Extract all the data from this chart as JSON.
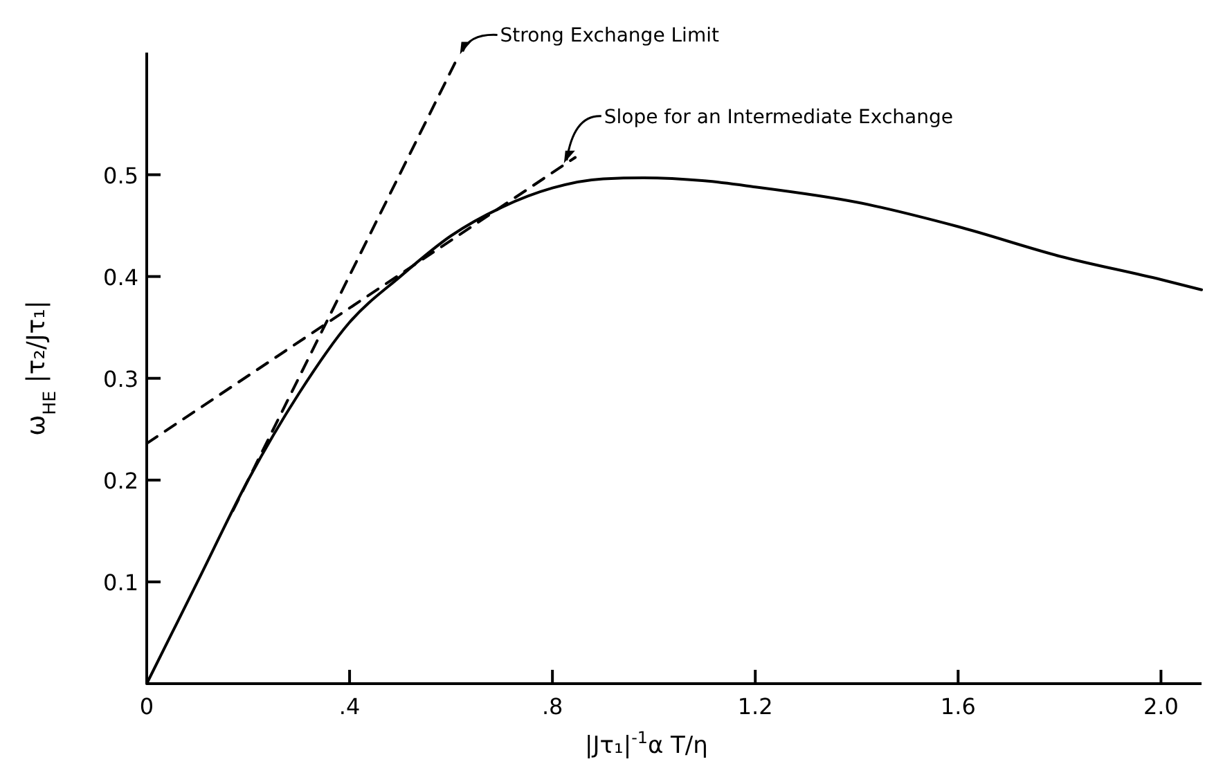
{
  "chart_data": {
    "type": "line",
    "xlabel": "|Jτ₁|$^{-1}$α  T/η",
    "ylabel": "ω$_{HE}$ |τ₂/Jτ₁|",
    "xlim": [
      0,
      2.08
    ],
    "ylim": [
      0,
      0.62
    ],
    "xticks": [
      0,
      {
        "value": 0.4,
        "label": ".4"
      },
      {
        "value": 0.8,
        "label": ".8"
      },
      1.2,
      1.6,
      {
        "value": 2,
        "label": "2.0"
      }
    ],
    "yticks": [
      0.1,
      0.2,
      0.3,
      0.4,
      0.5
    ],
    "marker": "none",
    "series": [
      {
        "color": "#000000",
        "line_style": "solid",
        "x": [
          0,
          0.1,
          0.2,
          0.3,
          0.4,
          0.5,
          0.6,
          0.7,
          0.8,
          0.9,
          0.98,
          1.1,
          1.2,
          1.4,
          1.6,
          1.8,
          2.0,
          2.08
        ],
        "values": [
          0,
          0.1,
          0.2,
          0.285,
          0.355,
          0.4,
          0.44,
          0.468,
          0.487,
          0.496,
          0.497,
          0.494,
          0.488,
          0.473,
          0.449,
          0.42,
          0.397,
          0.387
        ]
      },
      {
        "color": "#000000",
        "line_style": "dashed",
        "x": [
          0.17,
          0.615
        ],
        "values": [
          0.17,
          0.617
        ]
      },
      {
        "color": "#000000",
        "line_style": "dashed",
        "x": [
          0,
          0.845
        ],
        "values": [
          0.236,
          0.517
        ]
      }
    ],
    "annotations": [
      {
        "text": "Strong Exchange Limit",
        "x": 0.615,
        "y": 0.617
      },
      {
        "text": "Slope for an Intermediate Exchange",
        "x": 0.82,
        "y": 0.51
      }
    ]
  }
}
